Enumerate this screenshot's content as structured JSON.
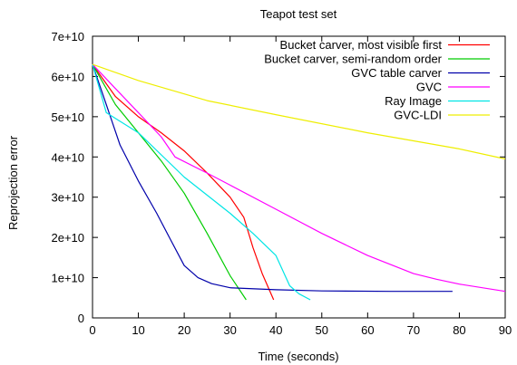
{
  "chart_data": {
    "type": "line",
    "title": "Teapot test set",
    "xlabel": "Time (seconds)",
    "ylabel": "Reprojection error",
    "xlim": [
      0,
      90
    ],
    "ylim": [
      0,
      70000000000
    ],
    "x_ticks": [
      0,
      10,
      20,
      30,
      40,
      50,
      60,
      70,
      80,
      90
    ],
    "x_tick_labels": [
      "0",
      "10",
      "20",
      "30",
      "40",
      "50",
      "60",
      "70",
      "80",
      "90"
    ],
    "y_ticks": [
      0,
      10000000000,
      20000000000,
      30000000000,
      40000000000,
      50000000000,
      60000000000,
      70000000000
    ],
    "y_tick_labels": [
      "0",
      "1e+10",
      "2e+10",
      "3e+10",
      "4e+10",
      "5e+10",
      "6e+10",
      "7e+10"
    ],
    "grid": false,
    "legend_position": "top-right",
    "series": [
      {
        "name": "Bucket carver, most visible first",
        "color": "#ff0000",
        "points": [
          [
            0,
            63000000000.0
          ],
          [
            5,
            55000000000.0
          ],
          [
            10,
            50000000000.0
          ],
          [
            15,
            46000000000.0
          ],
          [
            20,
            41500000000.0
          ],
          [
            25,
            36000000000.0
          ],
          [
            30,
            30000000000.0
          ],
          [
            33,
            25000000000.0
          ],
          [
            35,
            17500000000.0
          ],
          [
            37,
            11000000000.0
          ],
          [
            39.5,
            4500000000.0
          ]
        ]
      },
      {
        "name": "Bucket carver, semi-random order",
        "color": "#00cc00",
        "points": [
          [
            0,
            63000000000.0
          ],
          [
            5,
            53000000000.0
          ],
          [
            10,
            46000000000.0
          ],
          [
            15,
            39000000000.0
          ],
          [
            20,
            31000000000.0
          ],
          [
            25,
            21000000000.0
          ],
          [
            30,
            10500000000.0
          ],
          [
            33.5,
            4500000000.0
          ]
        ]
      },
      {
        "name": "GVC table carver",
        "color": "#0000aa",
        "points": [
          [
            0,
            63000000000.0
          ],
          [
            3,
            53000000000.0
          ],
          [
            6,
            43000000000.0
          ],
          [
            10,
            34000000000.0
          ],
          [
            14,
            26000000000.0
          ],
          [
            17,
            19500000000.0
          ],
          [
            20,
            13000000000.0
          ],
          [
            23,
            10000000000.0
          ],
          [
            26,
            8500000000.0
          ],
          [
            30,
            7500000000.0
          ],
          [
            40,
            7000000000.0
          ],
          [
            50,
            6700000000.0
          ],
          [
            65,
            6600000000.0
          ],
          [
            78.5,
            6600000000.0
          ]
        ]
      },
      {
        "name": "GVC",
        "color": "#ff00ff",
        "points": [
          [
            0,
            63000000000.0
          ],
          [
            5,
            57000000000.0
          ],
          [
            10,
            51000000000.0
          ],
          [
            15,
            45000000000.0
          ],
          [
            18,
            40000000000.0
          ],
          [
            25,
            36000000000.0
          ],
          [
            30,
            33000000000.0
          ],
          [
            40,
            27000000000.0
          ],
          [
            50,
            21000000000.0
          ],
          [
            60,
            15500000000.0
          ],
          [
            70,
            11000000000.0
          ],
          [
            75,
            9600000000.0
          ],
          [
            80,
            8400000000.0
          ],
          [
            90,
            6600000000.0
          ]
        ]
      },
      {
        "name": "Ray Image",
        "color": "#00e5e5",
        "points": [
          [
            0,
            63000000000.0
          ],
          [
            3,
            51000000000.0
          ],
          [
            10,
            46000000000.0
          ],
          [
            20,
            35000000000.0
          ],
          [
            30,
            26000000000.0
          ],
          [
            35,
            21000000000.0
          ],
          [
            40,
            15500000000.0
          ],
          [
            43,
            8000000000.0
          ],
          [
            45,
            6000000000.0
          ],
          [
            47.5,
            4500000000.0
          ]
        ]
      },
      {
        "name": "GVC-LDI",
        "color": "#eeee00",
        "points": [
          [
            0,
            63000000000.0
          ],
          [
            10,
            59000000000.0
          ],
          [
            25,
            54000000000.0
          ],
          [
            40,
            50500000000.0
          ],
          [
            60,
            46000000000.0
          ],
          [
            80,
            42000000000.0
          ],
          [
            90,
            39500000000.0
          ]
        ]
      }
    ]
  }
}
